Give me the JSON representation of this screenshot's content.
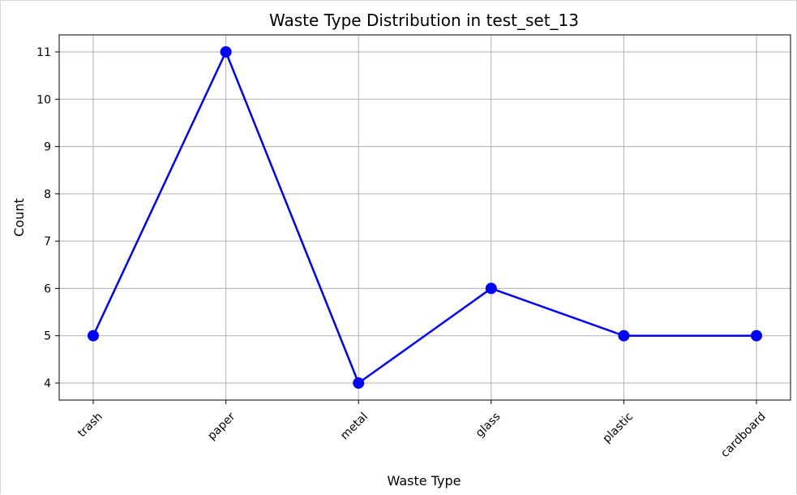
{
  "chart_data": {
    "type": "line",
    "title": "Waste Type Distribution in test_set_13",
    "xlabel": "Waste Type",
    "ylabel": "Count",
    "categories": [
      "trash",
      "paper",
      "metal",
      "glass",
      "plastic",
      "cardboard"
    ],
    "values": [
      5,
      11,
      4,
      6,
      5,
      5
    ],
    "ylim": [
      3.64,
      11.36
    ],
    "yticks": [
      4,
      5,
      6,
      7,
      8,
      9,
      10,
      11
    ],
    "grid": true,
    "line_color": "#0000ff",
    "marker": "circle"
  }
}
